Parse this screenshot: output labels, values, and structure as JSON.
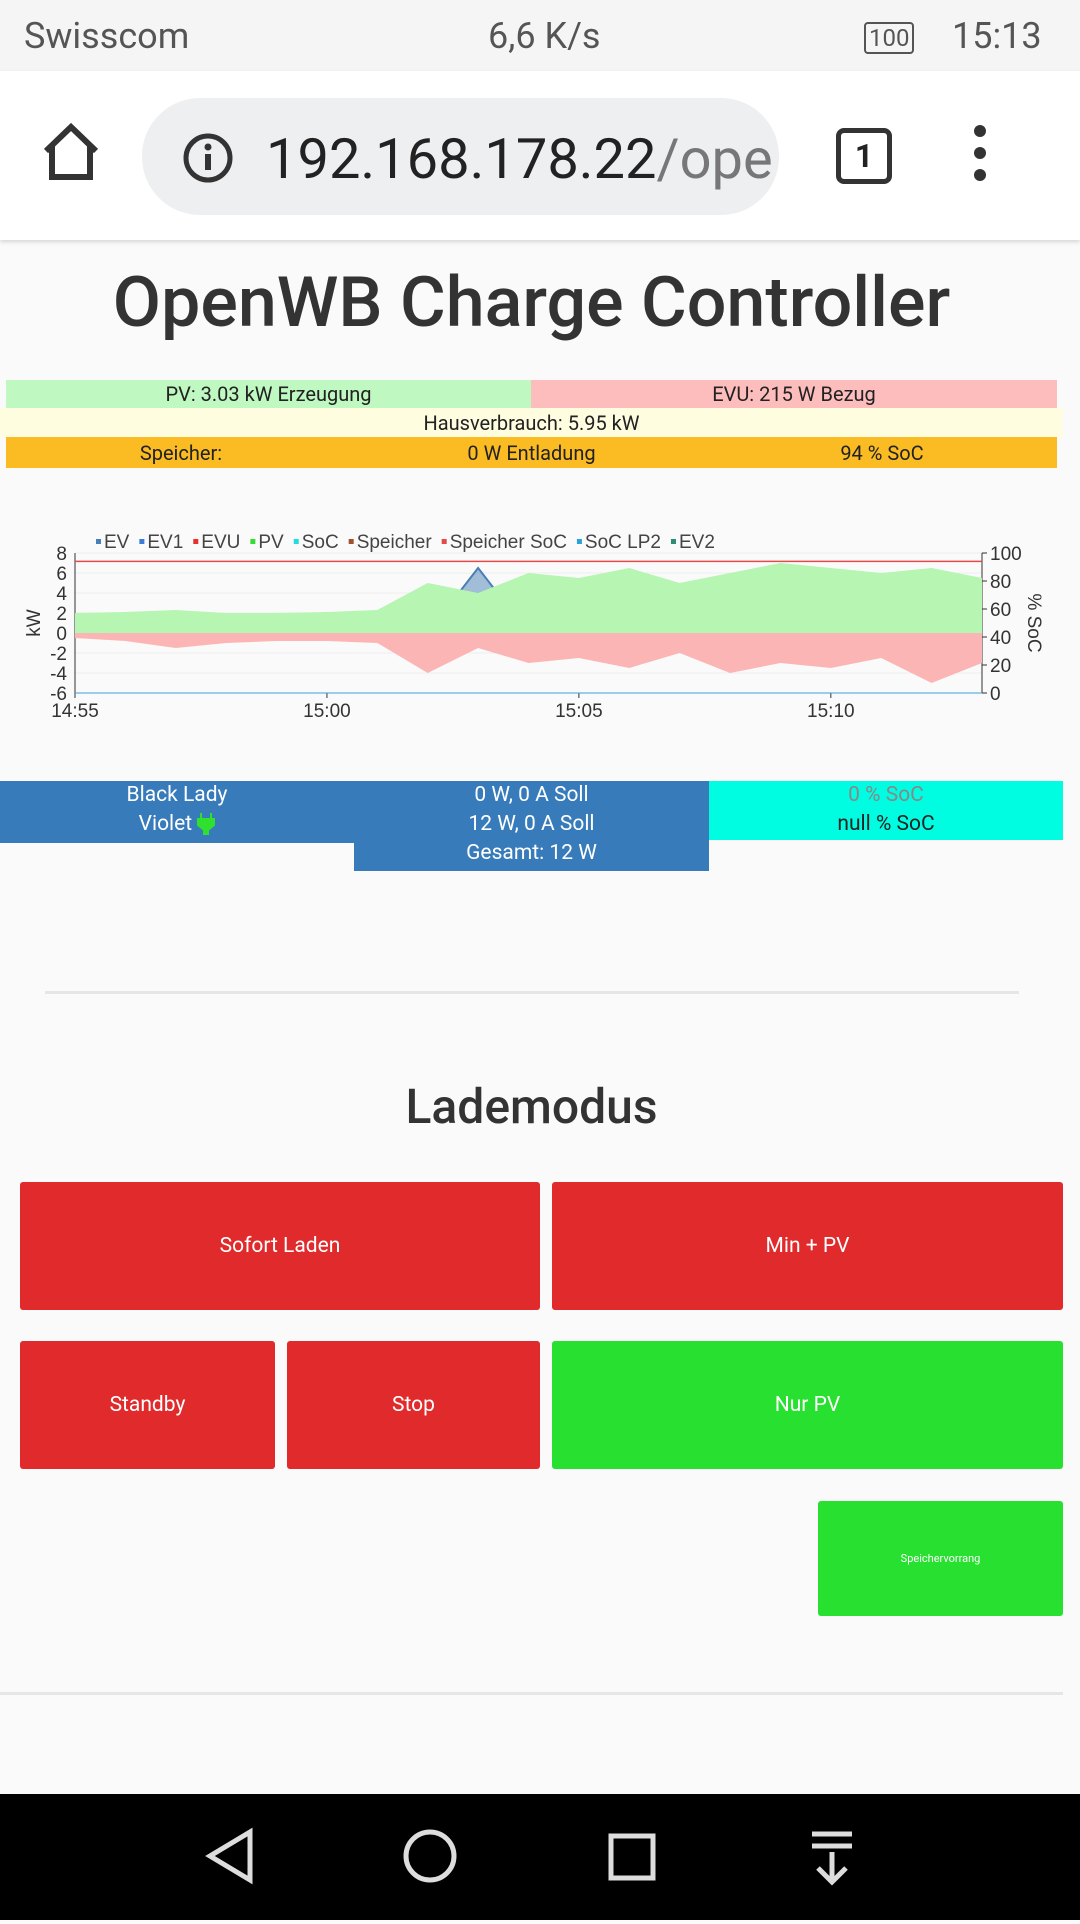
{
  "status": {
    "carrier": "Swisscom",
    "speed": "6,6 K/s",
    "battery": "100",
    "time": "15:13"
  },
  "browser": {
    "url_host": "192.168.178.22",
    "url_path": "/ope",
    "tabs": "1"
  },
  "page": {
    "title": "OpenWB Charge Controller"
  },
  "summary": {
    "pv": "PV: 3.03 kW Erzeugung",
    "evu": "EVU: 215 W Bezug",
    "house": "Hausverbrauch: 5.95 kW",
    "storage_label": "Speicher:",
    "storage_power": "0 W Entladung",
    "storage_soc": "94 % SoC"
  },
  "chart": {
    "type": "area",
    "ylabel": "kW",
    "y2label": "% SoC",
    "x": [
      "14:55",
      "14:56",
      "14:57",
      "14:58",
      "14:59",
      "15:00",
      "15:01",
      "15:02",
      "15:03",
      "15:04",
      "15:05",
      "15:06",
      "15:07",
      "15:08",
      "15:09",
      "15:10",
      "15:11",
      "15:12",
      "15:13"
    ],
    "xticks": [
      "14:55",
      "15:00",
      "15:05",
      "15:10"
    ],
    "ylim": [
      -6,
      8
    ],
    "yticks": [
      -6,
      -4,
      -2,
      0,
      2,
      4,
      6,
      8
    ],
    "y2lim": [
      0,
      100
    ],
    "y2ticks": [
      0,
      20,
      40,
      60,
      80,
      100
    ],
    "grid": true,
    "series": [
      {
        "name": "EV",
        "color": "#4a7fb5",
        "values": [
          0,
          0,
          0,
          0,
          0,
          0,
          0,
          0,
          6.5,
          0,
          0,
          0,
          0,
          0,
          0,
          0,
          0,
          0,
          0
        ]
      },
      {
        "name": "EV1",
        "color": "#3d7bd8"
      },
      {
        "name": "EVU",
        "color": "#e8312f",
        "values": [
          -0.5,
          -0.8,
          -1.5,
          -1.0,
          -0.8,
          -0.8,
          -1.0,
          -4.0,
          -1.5,
          -3.0,
          -2.5,
          -3.5,
          -2.0,
          -4.0,
          -3.0,
          -3.5,
          -2.5,
          -5.0,
          -3.0
        ]
      },
      {
        "name": "PV",
        "color": "#33dd33",
        "values": [
          2.0,
          2.1,
          2.3,
          2.0,
          2.0,
          2.1,
          2.3,
          5.0,
          4.0,
          6.0,
          5.5,
          6.5,
          5.0,
          6.0,
          7.0,
          6.5,
          6.0,
          6.5,
          5.5
        ]
      },
      {
        "name": "SoC",
        "color": "#22dddd"
      },
      {
        "name": "Speicher",
        "color": "#a0522d"
      },
      {
        "name": "Speicher SoC",
        "color": "#e34a4a",
        "axis": "y2",
        "values": [
          94,
          94,
          94,
          94,
          94,
          94,
          94,
          94,
          94,
          94,
          94,
          94,
          94,
          94,
          94,
          94,
          94,
          94,
          94
        ]
      },
      {
        "name": "SoC LP2",
        "color": "#2aa1d8"
      },
      {
        "name": "EV2",
        "color": "#2e8b74"
      }
    ]
  },
  "loadpoints": [
    {
      "name": "Black Lady",
      "power": "0 W, 0 A Soll",
      "soc": "0 % SoC"
    },
    {
      "name": "Violet",
      "power": "12 W, 0 A Soll",
      "soc": "null % SoC"
    }
  ],
  "total": "Gesamt: 12 W",
  "mode": {
    "heading": "Lademodus",
    "buttons": [
      "Sofort Laden",
      "Min + PV",
      "Standby",
      "Stop",
      "Nur PV",
      "Speichervorrang"
    ]
  }
}
